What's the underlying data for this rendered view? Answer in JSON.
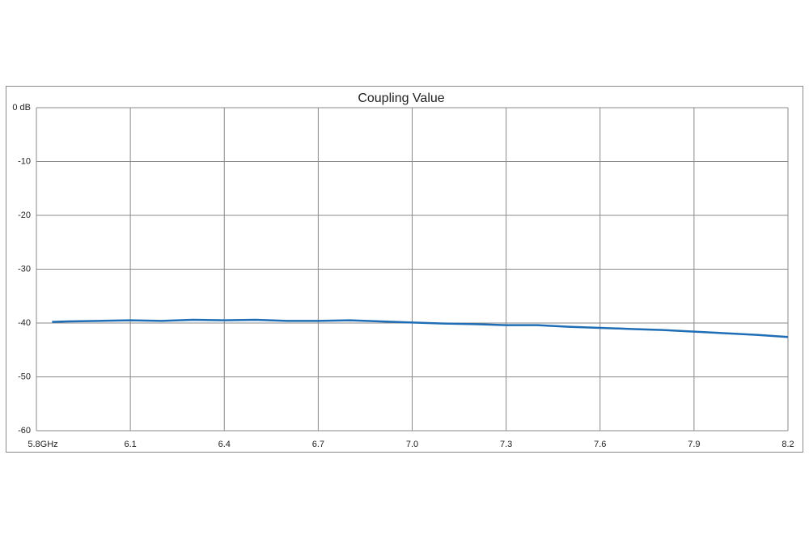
{
  "chart_data": {
    "type": "line",
    "title": "Coupling Value",
    "x": [
      5.85,
      5.9,
      6.0,
      6.1,
      6.2,
      6.3,
      6.4,
      6.5,
      6.6,
      6.7,
      6.8,
      6.9,
      7.0,
      7.1,
      7.2,
      7.3,
      7.4,
      7.5,
      7.6,
      7.7,
      7.8,
      7.9,
      8.0,
      8.1,
      8.2
    ],
    "series": [
      {
        "name": "Coupling Value",
        "color": "#1f6eb5",
        "values": [
          -39.8,
          -39.7,
          -39.6,
          -39.5,
          -39.6,
          -39.4,
          -39.5,
          -39.4,
          -39.6,
          -39.6,
          -39.5,
          -39.7,
          -39.9,
          -40.1,
          -40.2,
          -40.4,
          -40.4,
          -40.7,
          -40.9,
          -41.1,
          -41.3,
          -41.6,
          -41.9,
          -42.2,
          -42.6
        ]
      }
    ],
    "xlim": [
      5.8,
      8.2
    ],
    "xticks": [
      {
        "value": 5.8,
        "label": "5.8GHz"
      },
      6.1,
      6.4,
      6.7,
      {
        "value": 7,
        "label": "7.0"
      },
      7.3,
      7.6,
      7.9,
      8.2
    ],
    "ylim": [
      -60,
      0
    ],
    "yticks": [
      {
        "value": 0,
        "label": "0 dB"
      },
      -10,
      -20,
      -30,
      -40,
      -50,
      -60
    ],
    "grid": true
  }
}
